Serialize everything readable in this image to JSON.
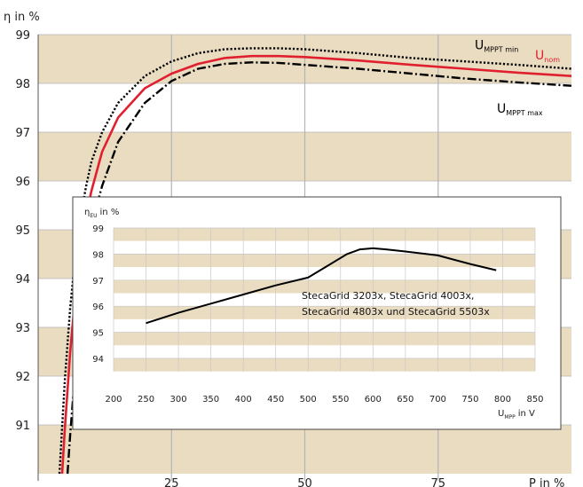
{
  "chart_data": [
    {
      "type": "line",
      "ylabel": "η in %",
      "xlabel": "P in %",
      "xlim": [
        0,
        100
      ],
      "ylim": [
        90,
        99
      ],
      "x_ticks": [
        {
          "value": 25,
          "label": "25"
        },
        {
          "value": 50,
          "label": "50"
        },
        {
          "value": 75,
          "label": "75"
        }
      ],
      "y_ticks": [
        {
          "value": 91,
          "label": "91"
        },
        {
          "value": 92,
          "label": "92"
        },
        {
          "value": 93,
          "label": "93"
        },
        {
          "value": 94,
          "label": "94"
        },
        {
          "value": 95,
          "label": "95"
        },
        {
          "value": 96,
          "label": "96"
        },
        {
          "value": 97,
          "label": "97"
        },
        {
          "value": 98,
          "label": "98"
        },
        {
          "value": 99,
          "label": "99"
        }
      ],
      "band_colors": {
        "shaded": "#eadcc0",
        "plain": "#ffffff",
        "grid": "#b4b4b4"
      },
      "series": [
        {
          "name": "U_MPPT min",
          "label_main": "U",
          "label_sub": "MPPT min",
          "label_value": 98.7,
          "color": "#000000",
          "style": "dotted",
          "x": [
            4.0,
            5,
            6,
            7,
            8,
            9,
            10,
            12,
            15,
            20,
            25,
            30,
            35,
            40,
            45,
            50,
            60,
            70,
            80,
            90,
            100
          ],
          "y": [
            90.0,
            91.9,
            93.4,
            94.5,
            95.3,
            95.9,
            96.4,
            97.0,
            97.6,
            98.15,
            98.45,
            98.62,
            98.7,
            98.72,
            98.72,
            98.7,
            98.62,
            98.52,
            98.45,
            98.38,
            98.3
          ]
        },
        {
          "name": "U_nom",
          "label_main": "U",
          "label_sub": "nom",
          "label_value": 98.4,
          "color": "#e0202e",
          "style": "solid",
          "x": [
            4.5,
            5,
            6,
            7,
            8,
            9,
            10,
            12,
            15,
            20,
            25,
            30,
            35,
            40,
            45,
            50,
            60,
            70,
            80,
            90,
            100
          ],
          "y": [
            90.0,
            90.9,
            92.5,
            93.7,
            94.6,
            95.3,
            95.8,
            96.6,
            97.3,
            97.9,
            98.2,
            98.4,
            98.52,
            98.56,
            98.56,
            98.54,
            98.47,
            98.38,
            98.3,
            98.22,
            98.15
          ]
        },
        {
          "name": "U_MPPT max",
          "label_main": "U",
          "label_sub": "MPPT max",
          "label_value": 97.8,
          "color": "#000000",
          "style": "dash-dot",
          "x": [
            5.5,
            6,
            7,
            8,
            9,
            10,
            11,
            12,
            15,
            20,
            25,
            30,
            35,
            40,
            45,
            50,
            60,
            70,
            80,
            90,
            100
          ],
          "y": [
            90.0,
            90.8,
            92.2,
            93.4,
            94.3,
            95.0,
            95.5,
            95.9,
            96.8,
            97.6,
            98.05,
            98.3,
            98.4,
            98.43,
            98.42,
            98.38,
            98.3,
            98.2,
            98.1,
            98.02,
            97.95
          ]
        }
      ]
    },
    {
      "type": "line",
      "ylabel_main": "η",
      "ylabel_sub": "EU",
      "ylabel_unit": "in %",
      "xlabel_main": "U",
      "xlabel_sub": "MPP",
      "xlabel_unit": "in V",
      "xlim": [
        200,
        850
      ],
      "ylim": [
        93.5,
        99
      ],
      "x_ticks": [
        "200",
        "250",
        "300",
        "350",
        "400",
        "450",
        "500",
        "550",
        "600",
        "650",
        "700",
        "750",
        "800",
        "850"
      ],
      "x_tick_values": [
        200,
        250,
        300,
        350,
        400,
        450,
        500,
        550,
        600,
        650,
        700,
        750,
        800,
        850
      ],
      "y_ticks": [
        "94",
        "95",
        "96",
        "97",
        "98",
        "99"
      ],
      "y_tick_values": [
        94,
        95,
        96,
        97,
        98,
        99
      ],
      "annotation_lines": [
        "StecaGrid 3203x, StecaGrid 4003x,",
        "StecaGrid 4803x und StecaGrid 5503x"
      ],
      "series": [
        {
          "color": "#000000",
          "x": [
            250,
            300,
            350,
            400,
            450,
            500,
            530,
            560,
            580,
            600,
            620,
            650,
            700,
            750,
            790
          ],
          "y": [
            95.35,
            95.75,
            96.1,
            96.45,
            96.8,
            97.1,
            97.55,
            98.0,
            98.18,
            98.22,
            98.18,
            98.1,
            97.95,
            97.62,
            97.38
          ]
        }
      ]
    }
  ]
}
